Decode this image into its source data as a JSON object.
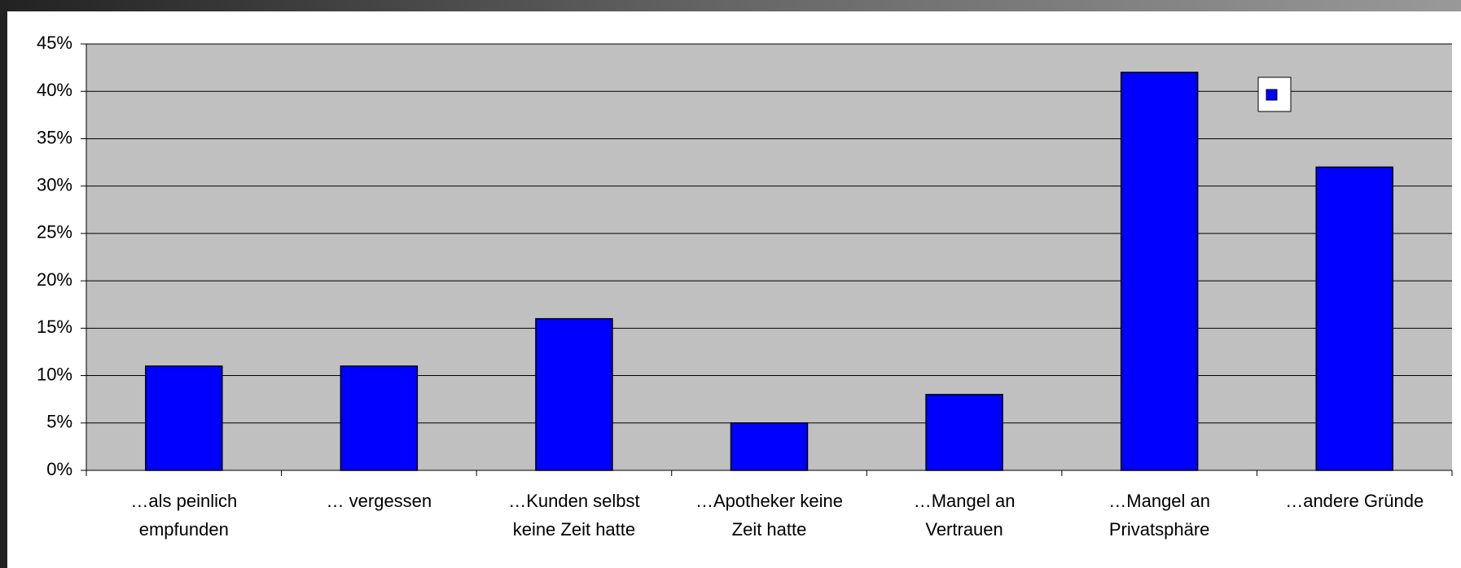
{
  "chart_data": {
    "type": "bar",
    "categories": [
      "…als peinlich empfunden",
      "… vergessen",
      "…Kunden selbst keine Zeit hatte",
      "…Apotheker keine Zeit hatte",
      "…Mangel an Vertrauen",
      "…Mangel an Privatsphäre",
      "…andere Gründe"
    ],
    "values": [
      11,
      11,
      16,
      5,
      8,
      42,
      32
    ],
    "color": "#0000ff",
    "ylim": [
      0,
      45
    ],
    "yticks": [
      {
        "value": 0,
        "label": "0%"
      },
      {
        "value": 5,
        "label": "5%"
      },
      {
        "value": 10,
        "label": "10%"
      },
      {
        "value": 15,
        "label": "15%"
      },
      {
        "value": 20,
        "label": "20%"
      },
      {
        "value": 25,
        "label": "25%"
      },
      {
        "value": 30,
        "label": "30%"
      },
      {
        "value": 35,
        "label": "35%"
      },
      {
        "value": 40,
        "label": "40%"
      },
      {
        "value": 45,
        "label": "45%"
      }
    ],
    "grid": true,
    "legend": "upper right"
  }
}
